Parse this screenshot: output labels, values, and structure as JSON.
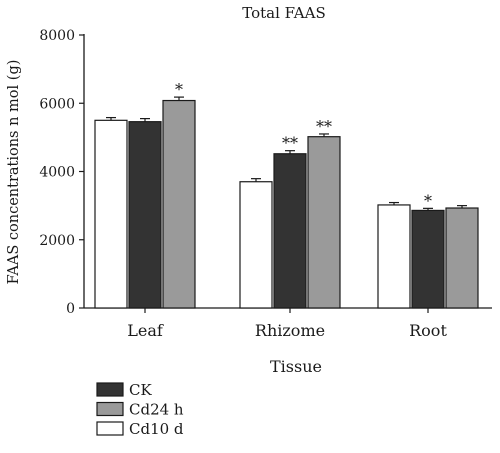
{
  "chart_data": {
    "type": "bar",
    "title": "Total FAAS",
    "xlabel": "Tissue",
    "ylabel": "FAAS concentrations n mol (g)",
    "ylim": [
      0,
      8000
    ],
    "yticks": [
      0,
      2000,
      4000,
      6000,
      8000
    ],
    "categories": [
      "Leaf",
      "Rhizome",
      "Root"
    ],
    "bar_order": [
      "Cd10 d",
      "CK",
      "Cd24 h"
    ],
    "series": [
      {
        "name": "Cd10 d",
        "color": "#ffffff",
        "values": [
          5500,
          3700,
          3020
        ],
        "errors": [
          80,
          90,
          70
        ],
        "significance": [
          "",
          "",
          ""
        ]
      },
      {
        "name": "CK",
        "color": "#333333",
        "values": [
          5460,
          4520,
          2860
        ],
        "errors": [
          90,
          90,
          60
        ],
        "significance": [
          "",
          "**",
          "*"
        ]
      },
      {
        "name": "Cd24 h",
        "color": "#9a9a9a",
        "values": [
          6080,
          5020,
          2930
        ],
        "errors": [
          100,
          80,
          70
        ],
        "significance": [
          "*",
          "**",
          ""
        ]
      }
    ],
    "legend": {
      "placement": "bottom-left",
      "order": [
        "CK",
        "Cd24 h",
        "Cd10 d"
      ]
    },
    "grid": false
  }
}
